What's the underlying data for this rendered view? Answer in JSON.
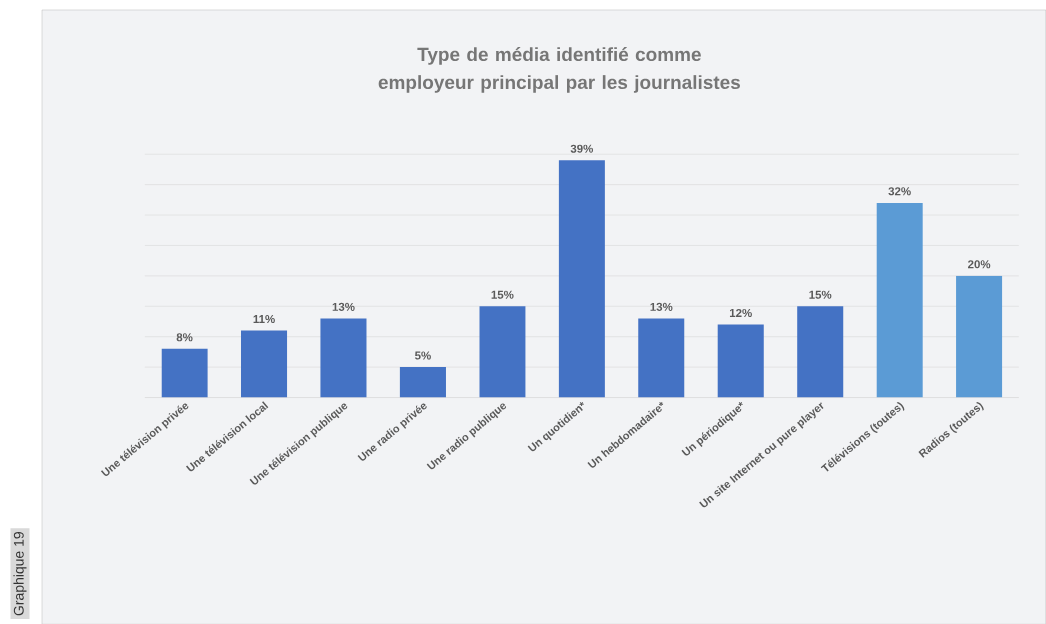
{
  "chart_data": {
    "type": "bar",
    "title": "Type de média identifié comme employeur principal par les journalistes",
    "categories": [
      "Une télévision privée",
      "Une télévision local",
      "Une télévision publique",
      "Une radio privée",
      "Une radio publique",
      "Un quotidien*",
      "Un hebdomadaire*",
      "Un périodique*",
      "Un site Internet ou pure player",
      "Télévisions (toutes)",
      "Radios (toutes)"
    ],
    "values": [
      8,
      11,
      13,
      5,
      15,
      39,
      13,
      12,
      15,
      32,
      20
    ],
    "value_labels": [
      "8%",
      "11%",
      "13%",
      "5%",
      "15%",
      "39%",
      "13%",
      "12%",
      "15%",
      "32%",
      "20%"
    ],
    "colors": [
      "#4472c4",
      "#4472c4",
      "#4472c4",
      "#4472c4",
      "#4472c4",
      "#4472c4",
      "#4472c4",
      "#4472c4",
      "#4472c4",
      "#5b9bd5",
      "#5b9bd5"
    ],
    "grid": "y",
    "tick_labels": "x",
    "annotations": [
      "Graphique 19"
    ]
  }
}
